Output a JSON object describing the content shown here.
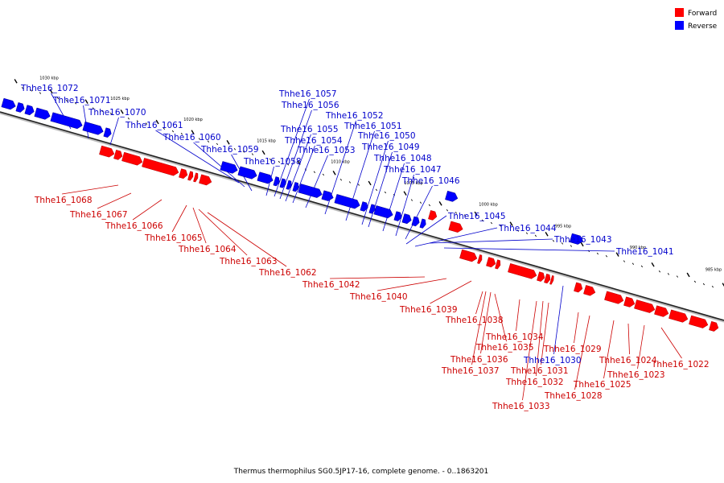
{
  "legend": {
    "forward": {
      "label": "Forward",
      "color": "#ff0000"
    },
    "reverse": {
      "label": "Reverse",
      "color": "#0000ff"
    }
  },
  "caption": "Thermus thermophilus SG0.5JP17-16, complete genome. - 0..1863201",
  "backbone": {
    "ticks": [
      "1030 kbp",
      "1025 kbp",
      "1020 kbp",
      "1015 kbp",
      "1010 kbp",
      "1005 kbp",
      "1000 kbp",
      "995 kbp",
      "990 kbp",
      "985 kbp"
    ]
  },
  "genes": [
    {
      "name": "Thhe16_1072",
      "strand": "reverse"
    },
    {
      "name": "Thhe16_1071",
      "strand": "reverse"
    },
    {
      "name": "Thhe16_1070",
      "strand": "reverse"
    },
    {
      "name": "Thhe16_1061",
      "strand": "reverse"
    },
    {
      "name": "Thhe16_1060",
      "strand": "reverse"
    },
    {
      "name": "Thhe16_1059",
      "strand": "reverse"
    },
    {
      "name": "Thhe16_1058",
      "strand": "reverse"
    },
    {
      "name": "Thhe16_1057",
      "strand": "reverse"
    },
    {
      "name": "Thhe16_1056",
      "strand": "reverse"
    },
    {
      "name": "Thhe16_1055",
      "strand": "reverse"
    },
    {
      "name": "Thhe16_1054",
      "strand": "reverse"
    },
    {
      "name": "Thhe16_1053",
      "strand": "reverse"
    },
    {
      "name": "Thhe16_1052",
      "strand": "reverse"
    },
    {
      "name": "Thhe16_1051",
      "strand": "reverse"
    },
    {
      "name": "Thhe16_1050",
      "strand": "reverse"
    },
    {
      "name": "Thhe16_1049",
      "strand": "reverse"
    },
    {
      "name": "Thhe16_1048",
      "strand": "reverse"
    },
    {
      "name": "Thhe16_1047",
      "strand": "reverse"
    },
    {
      "name": "Thhe16_1046",
      "strand": "reverse"
    },
    {
      "name": "Thhe16_1045",
      "strand": "reverse"
    },
    {
      "name": "Thhe16_1044",
      "strand": "reverse"
    },
    {
      "name": "Thhe16_1043",
      "strand": "reverse"
    },
    {
      "name": "Thhe16_1041",
      "strand": "reverse"
    },
    {
      "name": "Thhe16_1030",
      "strand": "reverse"
    },
    {
      "name": "Thhe16_1068",
      "strand": "forward"
    },
    {
      "name": "Thhe16_1067",
      "strand": "forward"
    },
    {
      "name": "Thhe16_1066",
      "strand": "forward"
    },
    {
      "name": "Thhe16_1065",
      "strand": "forward"
    },
    {
      "name": "Thhe16_1064",
      "strand": "forward"
    },
    {
      "name": "Thhe16_1063",
      "strand": "forward"
    },
    {
      "name": "Thhe16_1062",
      "strand": "forward"
    },
    {
      "name": "Thhe16_1042",
      "strand": "forward"
    },
    {
      "name": "Thhe16_1040",
      "strand": "forward"
    },
    {
      "name": "Thhe16_1039",
      "strand": "forward"
    },
    {
      "name": "Thhe16_1038",
      "strand": "forward"
    },
    {
      "name": "Thhe16_1034",
      "strand": "forward"
    },
    {
      "name": "Thhe16_1035",
      "strand": "forward"
    },
    {
      "name": "Thhe16_1036",
      "strand": "forward"
    },
    {
      "name": "Thhe16_1037",
      "strand": "forward"
    },
    {
      "name": "Thhe16_1031",
      "strand": "forward"
    },
    {
      "name": "Thhe16_1032",
      "strand": "forward"
    },
    {
      "name": "Thhe16_1033",
      "strand": "forward"
    },
    {
      "name": "Thhe16_1029",
      "strand": "forward"
    },
    {
      "name": "Thhe16_1028",
      "strand": "forward"
    },
    {
      "name": "Thhe16_1025",
      "strand": "forward"
    },
    {
      "name": "Thhe16_1024",
      "strand": "forward"
    },
    {
      "name": "Thhe16_1023",
      "strand": "forward"
    },
    {
      "name": "Thhe16_1022",
      "strand": "forward"
    }
  ]
}
